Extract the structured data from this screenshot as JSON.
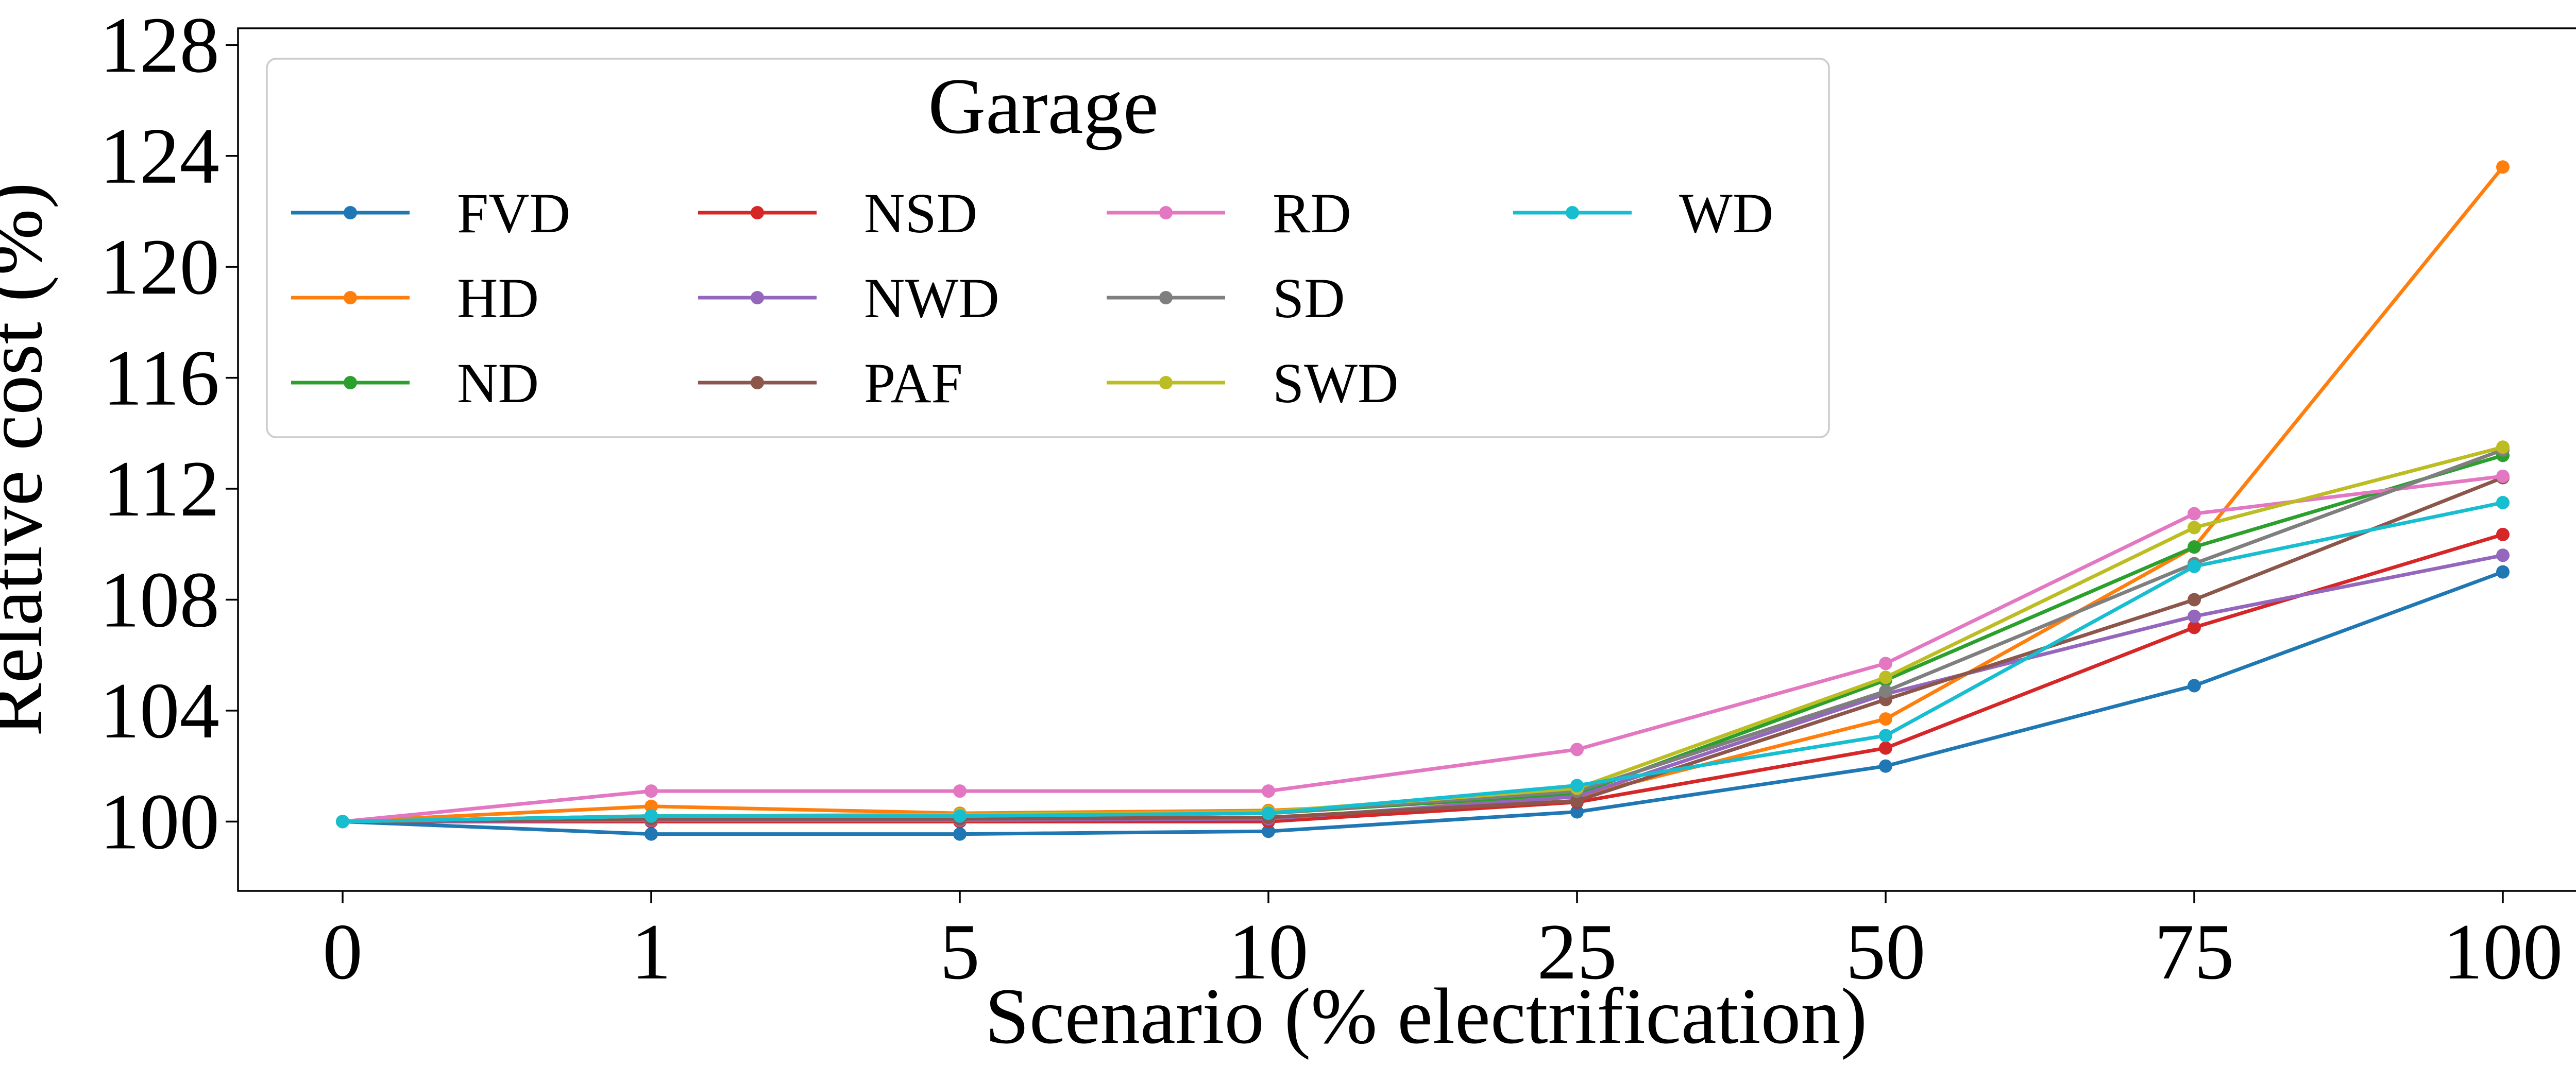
{
  "chart_data": {
    "type": "line",
    "xlabel": "Scenario (% electrification)",
    "ylabel": "Relative cost (%)",
    "categories": [
      "0",
      "1",
      "5",
      "10",
      "25",
      "50",
      "75",
      "100"
    ],
    "y_ticks": [
      "100",
      "104",
      "108",
      "112",
      "116",
      "120",
      "124",
      "128"
    ],
    "ylim": [
      97.5,
      128.6
    ],
    "grid": false,
    "legend": {
      "title": "Garage",
      "placement": "top-left",
      "columns": 4
    },
    "series": [
      {
        "name": "FVD",
        "color": "#1f77b4",
        "values": [
          100.0,
          99.55,
          99.55,
          99.65,
          100.35,
          102.0,
          104.9,
          109.0
        ]
      },
      {
        "name": "HD",
        "color": "#ff7f0e",
        "values": [
          100.0,
          100.55,
          100.3,
          100.4,
          100.9,
          103.7,
          109.9,
          123.6
        ]
      },
      {
        "name": "ND",
        "color": "#2ca02c",
        "values": [
          100.0,
          100.2,
          100.2,
          100.3,
          101.0,
          105.1,
          109.9,
          113.2
        ]
      },
      {
        "name": "NSD",
        "color": "#d62728",
        "values": [
          100.0,
          100.0,
          100.0,
          100.0,
          100.7,
          102.65,
          107.0,
          110.35
        ]
      },
      {
        "name": "NWD",
        "color": "#9467bd",
        "values": [
          100.0,
          100.05,
          100.05,
          100.1,
          100.9,
          104.6,
          107.4,
          109.6
        ]
      },
      {
        "name": "PAF",
        "color": "#8c564b",
        "values": [
          100.0,
          100.1,
          100.1,
          100.15,
          100.75,
          104.4,
          108.0,
          112.4
        ]
      },
      {
        "name": "RD",
        "color": "#e377c2",
        "values": [
          100.0,
          101.1,
          101.1,
          101.1,
          102.6,
          105.7,
          111.1,
          112.45
        ]
      },
      {
        "name": "SD",
        "color": "#7f7f7f",
        "values": [
          100.0,
          100.2,
          100.2,
          100.3,
          101.1,
          104.7,
          109.3,
          113.4
        ]
      },
      {
        "name": "SWD",
        "color": "#bcbd22",
        "values": [
          100.0,
          100.2,
          100.25,
          100.35,
          101.2,
          105.2,
          110.6,
          113.5
        ]
      },
      {
        "name": "WD",
        "color": "#17becf",
        "values": [
          100.0,
          100.2,
          100.2,
          100.3,
          101.3,
          103.1,
          109.2,
          111.5
        ]
      }
    ]
  }
}
